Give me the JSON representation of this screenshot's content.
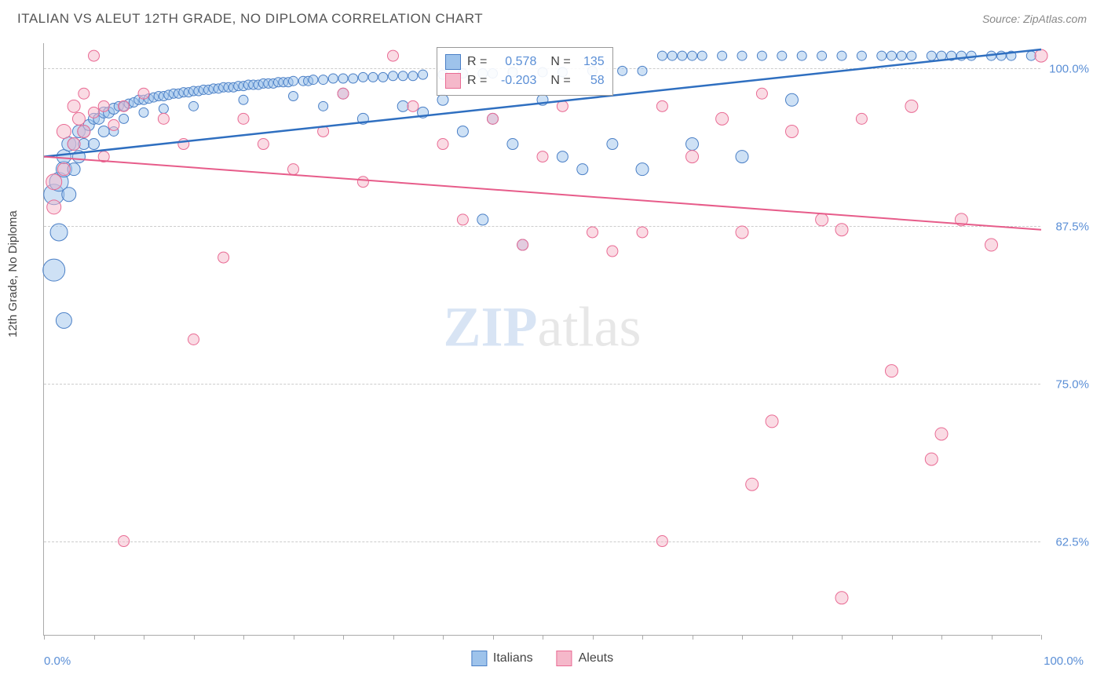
{
  "header": {
    "title": "ITALIAN VS ALEUT 12TH GRADE, NO DIPLOMA CORRELATION CHART",
    "source_prefix": "Source: ",
    "source_name": "ZipAtlas.com"
  },
  "chart": {
    "type": "scatter",
    "ylabel": "12th Grade, No Diploma",
    "xlim": [
      0,
      100
    ],
    "ylim": [
      55,
      102
    ],
    "x_axis_labels": {
      "min": "0.0%",
      "max": "100.0%"
    },
    "y_ticks": [
      {
        "v": 62.5,
        "label": "62.5%"
      },
      {
        "v": 75.0,
        "label": "75.0%"
      },
      {
        "v": 87.5,
        "label": "87.5%"
      },
      {
        "v": 100.0,
        "label": "100.0%"
      }
    ],
    "x_tick_positions": [
      0,
      5,
      10,
      15,
      20,
      25,
      30,
      35,
      40,
      45,
      50,
      55,
      60,
      65,
      70,
      75,
      80,
      85,
      90,
      95,
      100
    ],
    "background_color": "#ffffff",
    "grid_color": "#cccccc",
    "series": [
      {
        "name": "Italians",
        "color_fill": "#9ec3eb",
        "color_stroke": "#4a7fc6",
        "fill_opacity": 0.5,
        "r_value": "0.578",
        "n_value": "135",
        "regression": {
          "x1": 0,
          "y1": 93,
          "x2": 100,
          "y2": 101.5,
          "stroke": "#2f6fc0",
          "width": 2.5
        },
        "points": [
          [
            1,
            84,
            14
          ],
          [
            1,
            90,
            13
          ],
          [
            1.5,
            91,
            12
          ],
          [
            1.5,
            87,
            11
          ],
          [
            2,
            92,
            10
          ],
          [
            2,
            80,
            10
          ],
          [
            2,
            93,
            9
          ],
          [
            2.5,
            94,
            9
          ],
          [
            2.5,
            90,
            9
          ],
          [
            3,
            94,
            8
          ],
          [
            3,
            92,
            8
          ],
          [
            3.5,
            95,
            8
          ],
          [
            3.5,
            93,
            8
          ],
          [
            4,
            95,
            8
          ],
          [
            4,
            94,
            7
          ],
          [
            4.5,
            95.5,
            7
          ],
          [
            5,
            96,
            7
          ],
          [
            5,
            94,
            7
          ],
          [
            5.5,
            96,
            7
          ],
          [
            6,
            96.5,
            7
          ],
          [
            6,
            95,
            7
          ],
          [
            6.5,
            96.5,
            7
          ],
          [
            7,
            96.8,
            7
          ],
          [
            7,
            95,
            6
          ],
          [
            7.5,
            97,
            6
          ],
          [
            8,
            97,
            6
          ],
          [
            8,
            96,
            6
          ],
          [
            8.5,
            97.2,
            6
          ],
          [
            9,
            97.3,
            6
          ],
          [
            9.5,
            97.5,
            6
          ],
          [
            10,
            97.5,
            6
          ],
          [
            10,
            96.5,
            6
          ],
          [
            10.5,
            97.6,
            6
          ],
          [
            11,
            97.7,
            6
          ],
          [
            11.5,
            97.8,
            6
          ],
          [
            12,
            97.8,
            6
          ],
          [
            12,
            96.8,
            6
          ],
          [
            12.5,
            97.9,
            6
          ],
          [
            13,
            98,
            6
          ],
          [
            13.5,
            98,
            6
          ],
          [
            14,
            98.1,
            6
          ],
          [
            14.5,
            98.1,
            6
          ],
          [
            15,
            98.2,
            6
          ],
          [
            15,
            97,
            6
          ],
          [
            15.5,
            98.2,
            6
          ],
          [
            16,
            98.3,
            6
          ],
          [
            16.5,
            98.3,
            6
          ],
          [
            17,
            98.4,
            6
          ],
          [
            17.5,
            98.4,
            6
          ],
          [
            18,
            98.5,
            6
          ],
          [
            18.5,
            98.5,
            6
          ],
          [
            19,
            98.5,
            6
          ],
          [
            19.5,
            98.6,
            6
          ],
          [
            20,
            98.6,
            6
          ],
          [
            20,
            97.5,
            6
          ],
          [
            20.5,
            98.7,
            6
          ],
          [
            21,
            98.7,
            6
          ],
          [
            21.5,
            98.7,
            6
          ],
          [
            22,
            98.8,
            6
          ],
          [
            22.5,
            98.8,
            6
          ],
          [
            23,
            98.8,
            6
          ],
          [
            23.5,
            98.9,
            6
          ],
          [
            24,
            98.9,
            6
          ],
          [
            24.5,
            98.9,
            6
          ],
          [
            25,
            99,
            6
          ],
          [
            25,
            97.8,
            6
          ],
          [
            26,
            99,
            6
          ],
          [
            26.5,
            99,
            6
          ],
          [
            27,
            99.1,
            6
          ],
          [
            28,
            99.1,
            6
          ],
          [
            28,
            97,
            6
          ],
          [
            29,
            99.2,
            6
          ],
          [
            30,
            99.2,
            6
          ],
          [
            30,
            98,
            7
          ],
          [
            31,
            99.2,
            6
          ],
          [
            32,
            99.3,
            6
          ],
          [
            32,
            96,
            7
          ],
          [
            33,
            99.3,
            6
          ],
          [
            34,
            99.3,
            6
          ],
          [
            35,
            99.4,
            6
          ],
          [
            36,
            99.4,
            6
          ],
          [
            36,
            97,
            7
          ],
          [
            37,
            99.4,
            6
          ],
          [
            38,
            99.5,
            6
          ],
          [
            38,
            96.5,
            7
          ],
          [
            40,
            99.5,
            6
          ],
          [
            40,
            97.5,
            7
          ],
          [
            42,
            99.6,
            6
          ],
          [
            42,
            95,
            7
          ],
          [
            44,
            99.6,
            6
          ],
          [
            44,
            88,
            7
          ],
          [
            45,
            99.6,
            6
          ],
          [
            45,
            96,
            7
          ],
          [
            47,
            99.7,
            6
          ],
          [
            47,
            94,
            7
          ],
          [
            48,
            86,
            7
          ],
          [
            50,
            99.7,
            6
          ],
          [
            50,
            97.5,
            7
          ],
          [
            52,
            99.7,
            6
          ],
          [
            52,
            93,
            7
          ],
          [
            54,
            92,
            7
          ],
          [
            55,
            99.8,
            6
          ],
          [
            57,
            94,
            7
          ],
          [
            58,
            99.8,
            6
          ],
          [
            60,
            99.8,
            6
          ],
          [
            60,
            92,
            8
          ],
          [
            62,
            101,
            6
          ],
          [
            63,
            101,
            6
          ],
          [
            64,
            101,
            6
          ],
          [
            65,
            101,
            6
          ],
          [
            65,
            94,
            8
          ],
          [
            66,
            101,
            6
          ],
          [
            68,
            101,
            6
          ],
          [
            70,
            101,
            6
          ],
          [
            70,
            93,
            8
          ],
          [
            72,
            101,
            6
          ],
          [
            74,
            101,
            6
          ],
          [
            75,
            97.5,
            8
          ],
          [
            76,
            101,
            6
          ],
          [
            78,
            101,
            6
          ],
          [
            80,
            101,
            6
          ],
          [
            82,
            101,
            6
          ],
          [
            84,
            101,
            6
          ],
          [
            85,
            101,
            6
          ],
          [
            86,
            101,
            6
          ],
          [
            87,
            101,
            6
          ],
          [
            89,
            101,
            6
          ],
          [
            90,
            101,
            6
          ],
          [
            91,
            101,
            6
          ],
          [
            92,
            101,
            6
          ],
          [
            93,
            101,
            6
          ],
          [
            95,
            101,
            6
          ],
          [
            96,
            101,
            6
          ],
          [
            97,
            101,
            6
          ],
          [
            99,
            101,
            6
          ]
        ]
      },
      {
        "name": "Aleuts",
        "color_fill": "#f5b8ca",
        "color_stroke": "#e96b94",
        "fill_opacity": 0.5,
        "r_value": "-0.203",
        "n_value": "58",
        "regression": {
          "x1": 0,
          "y1": 93,
          "x2": 100,
          "y2": 87.2,
          "stroke": "#e75c8a",
          "width": 2
        },
        "points": [
          [
            1,
            91,
            10
          ],
          [
            1,
            89,
            9
          ],
          [
            2,
            95,
            9
          ],
          [
            2,
            92,
            8
          ],
          [
            3,
            97,
            8
          ],
          [
            3,
            94,
            8
          ],
          [
            3.5,
            96,
            8
          ],
          [
            4,
            95,
            8
          ],
          [
            4,
            98,
            7
          ],
          [
            5,
            96.5,
            7
          ],
          [
            5,
            101,
            7
          ],
          [
            6,
            93,
            7
          ],
          [
            6,
            97,
            7
          ],
          [
            7,
            95.5,
            7
          ],
          [
            8,
            62.5,
            7
          ],
          [
            8,
            97,
            7
          ],
          [
            10,
            98,
            7
          ],
          [
            12,
            96,
            7
          ],
          [
            14,
            94,
            7
          ],
          [
            15,
            78.5,
            7
          ],
          [
            18,
            85,
            7
          ],
          [
            20,
            96,
            7
          ],
          [
            22,
            94,
            7
          ],
          [
            25,
            92,
            7
          ],
          [
            28,
            95,
            7
          ],
          [
            30,
            98,
            7
          ],
          [
            32,
            91,
            7
          ],
          [
            35,
            101,
            7
          ],
          [
            37,
            97,
            7
          ],
          [
            40,
            94,
            7
          ],
          [
            42,
            88,
            7
          ],
          [
            45,
            96,
            7
          ],
          [
            48,
            86,
            7
          ],
          [
            50,
            93,
            7
          ],
          [
            52,
            97,
            7
          ],
          [
            55,
            87,
            7
          ],
          [
            57,
            85.5,
            7
          ],
          [
            60,
            87,
            7
          ],
          [
            62,
            97,
            7
          ],
          [
            62,
            62.5,
            7
          ],
          [
            65,
            93,
            8
          ],
          [
            68,
            96,
            8
          ],
          [
            70,
            87,
            8
          ],
          [
            71,
            67,
            8
          ],
          [
            72,
            98,
            7
          ],
          [
            73,
            72,
            8
          ],
          [
            75,
            95,
            8
          ],
          [
            78,
            88,
            8
          ],
          [
            80,
            87.2,
            8
          ],
          [
            80,
            58,
            8
          ],
          [
            82,
            96,
            7
          ],
          [
            85,
            76,
            8
          ],
          [
            87,
            97,
            8
          ],
          [
            89,
            69,
            8
          ],
          [
            90,
            71,
            8
          ],
          [
            92,
            88,
            8
          ],
          [
            95,
            86,
            8
          ],
          [
            100,
            101,
            8
          ]
        ]
      }
    ],
    "legend_labels": {
      "series1": "Italians",
      "series2": "Aleuts"
    },
    "stats_labels": {
      "r": "R =",
      "n": "N ="
    },
    "watermark": {
      "part1": "ZIP",
      "part2": "atlas"
    }
  }
}
